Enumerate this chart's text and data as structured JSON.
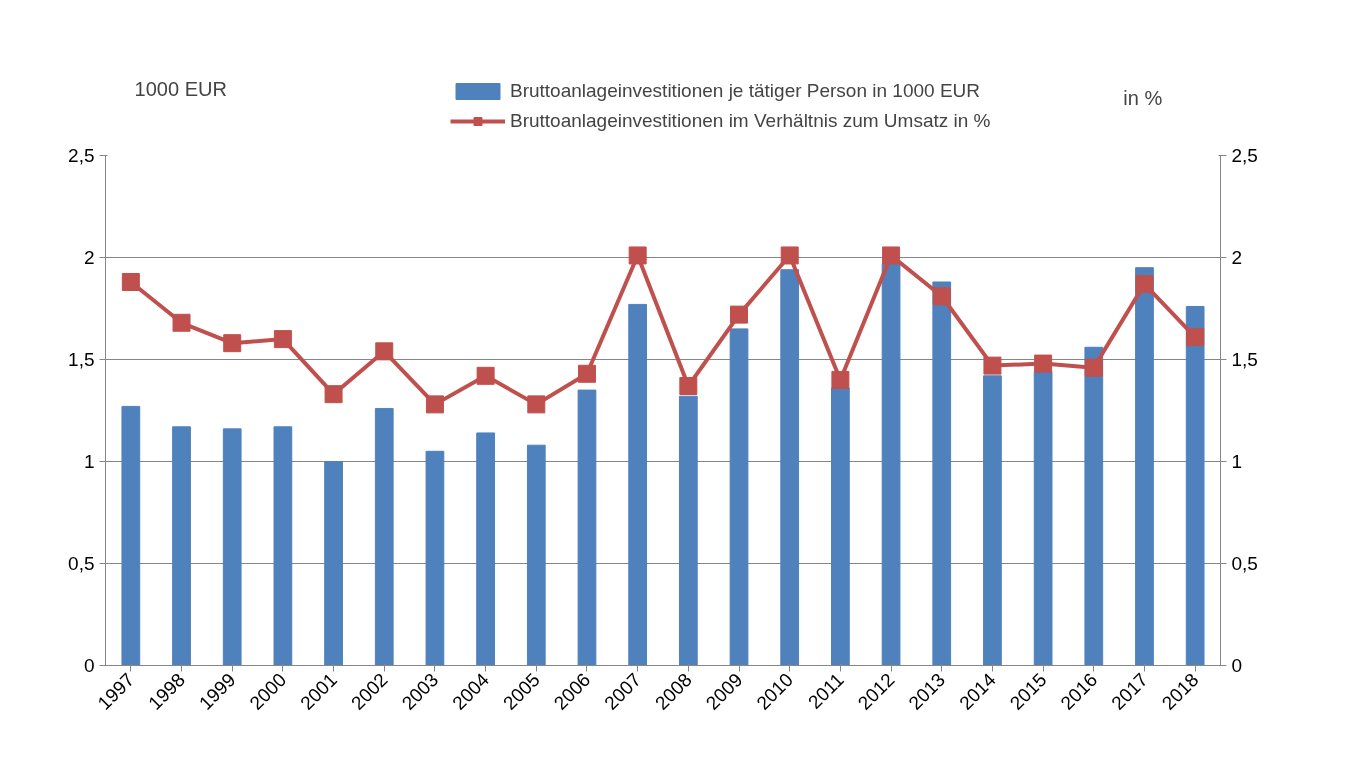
{
  "chart_data": {
    "type": "bar",
    "categories": [
      "1997",
      "1998",
      "1999",
      "2000",
      "2001",
      "2002",
      "2003",
      "2004",
      "2005",
      "2006",
      "2007",
      "2008",
      "2009",
      "2010",
      "2011",
      "2012",
      "2013",
      "2014",
      "2015",
      "2016",
      "2017",
      "2018"
    ],
    "ylabel": "1000 EUR",
    "y2label": "in %",
    "series": [
      {
        "name": "Bruttoanlageinvestitionen je tätiger Person in 1000 EUR",
        "color": "#4f81bd",
        "values": [
          1.27,
          1.17,
          1.16,
          1.17,
          1.0,
          1.26,
          1.05,
          1.14,
          1.08,
          1.35,
          1.77,
          1.32,
          1.65,
          1.94,
          1.36,
          1.97,
          1.88,
          1.42,
          1.44,
          1.56,
          1.95,
          1.76
        ]
      },
      {
        "name": "Bruttoanlageinvestitionen im Verhältnis zum Umsatz in %",
        "type": "line",
        "axis": "y2",
        "color": "#c0504d",
        "marker": "square",
        "values": [
          1.88,
          1.68,
          1.58,
          1.6,
          1.33,
          1.54,
          1.28,
          1.42,
          1.28,
          1.43,
          2.01,
          1.37,
          1.72,
          2.01,
          1.4,
          2.01,
          1.81,
          1.47,
          1.48,
          1.46,
          1.87,
          1.61
        ]
      }
    ],
    "ylim": [
      0,
      2.5
    ],
    "yticks": [
      0,
      {
        "value": 0.5,
        "label": "0,5"
      },
      1,
      {
        "value": 1.5,
        "label": "1,5"
      },
      2,
      {
        "value": 2.5,
        "label": "2,5"
      }
    ],
    "y2lim": [
      0,
      2.5
    ],
    "y2ticks": [
      0,
      {
        "value": 0.5,
        "label": "0,5"
      },
      1,
      {
        "value": 1.5,
        "label": "1,5"
      },
      2,
      {
        "value": 2.5,
        "label": "2,5"
      }
    ],
    "grid": "y",
    "legend": "top"
  }
}
